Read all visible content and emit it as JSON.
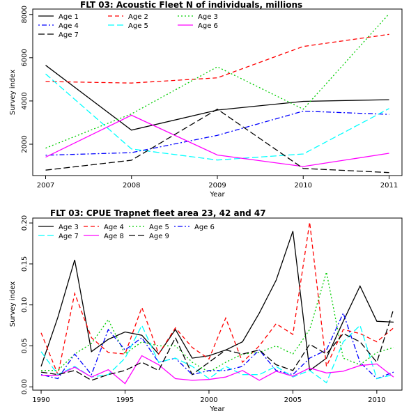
{
  "chart_data": [
    {
      "type": "line",
      "title": "FLT 03: Acoustic Fleet  N of individuals, millions",
      "xlabel": "Year",
      "ylabel": "Survey index",
      "xlim": [
        2006.85,
        2011.15
      ],
      "ylim": [
        550,
        8250
      ],
      "xticks": [
        2007,
        2008,
        2009,
        2010,
        2011
      ],
      "yticks": [
        2000,
        4000,
        6000,
        8000
      ],
      "legend_placement": "top-left",
      "legend_columns": 3,
      "x": [
        2007,
        2008,
        2009,
        2010,
        2011
      ],
      "series": [
        {
          "name": "Age 1",
          "color": "#000000",
          "dash": "solid",
          "values": [
            5650,
            2650,
            3580,
            3980,
            4060
          ]
        },
        {
          "name": "Age 2",
          "color": "#ff0000",
          "dash": "dashed",
          "values": [
            4900,
            4830,
            5070,
            6520,
            7080
          ]
        },
        {
          "name": "Age 3",
          "color": "#00cd00",
          "dash": "dotted",
          "values": [
            1820,
            3400,
            5580,
            3620,
            8030
          ]
        },
        {
          "name": "Age 4",
          "color": "#0000ff",
          "dash": "dotdash",
          "values": [
            1490,
            1610,
            2410,
            3530,
            3380
          ]
        },
        {
          "name": "Age 5",
          "color": "#00ffff",
          "dash": "longdash",
          "values": [
            5250,
            1780,
            1270,
            1550,
            3650
          ]
        },
        {
          "name": "Age 6",
          "color": "#ff00ff",
          "dash": "solid",
          "values": [
            1400,
            3340,
            1500,
            970,
            1580
          ]
        },
        {
          "name": "Age 7",
          "color": "#000000",
          "dash": "longdash",
          "values": [
            800,
            1260,
            3620,
            880,
            690
          ]
        }
      ]
    },
    {
      "type": "line",
      "title": "FLT 03: CPUE Trapnet fleet area 23, 42 and 47",
      "xlabel": "Year",
      "ylabel": "Survey index",
      "xlim": [
        1989.5,
        2011.5
      ],
      "ylim": [
        -0.004,
        0.206
      ],
      "xticks": [
        1990,
        1995,
        2000,
        2005,
        2010
      ],
      "yticks": [
        0.0,
        0.05,
        0.1,
        0.15,
        0.2
      ],
      "ytick_labels": [
        "0.00",
        "0.05",
        "0.10",
        "0.15",
        "0.20"
      ],
      "legend_placement": "top-left",
      "legend_columns": 4,
      "x": [
        1990,
        1991,
        1992,
        1993,
        1994,
        1995,
        1996,
        1997,
        1998,
        1999,
        2000,
        2001,
        2002,
        2003,
        2004,
        2005,
        2006,
        2007,
        2008,
        2009,
        2010,
        2011
      ],
      "series": [
        {
          "name": "Age 3",
          "color": "#000000",
          "dash": "solid",
          "values": [
            0.025,
            0.085,
            0.155,
            0.043,
            0.058,
            0.067,
            0.063,
            0.04,
            0.07,
            0.035,
            0.038,
            0.045,
            0.055,
            0.09,
            0.13,
            0.19,
            0.02,
            0.035,
            0.08,
            0.123,
            0.08,
            0.079
          ]
        },
        {
          "name": "Age 4",
          "color": "#ff0000",
          "dash": "dashed",
          "values": [
            0.066,
            0.015,
            0.114,
            0.06,
            0.042,
            0.04,
            0.097,
            0.04,
            0.072,
            0.048,
            0.034,
            0.084,
            0.03,
            0.05,
            0.077,
            0.064,
            0.201,
            0.025,
            0.07,
            0.065,
            0.055,
            0.072
          ]
        },
        {
          "name": "Age 5",
          "color": "#00cd00",
          "dash": "dotted",
          "values": [
            0.02,
            0.02,
            0.04,
            0.053,
            0.082,
            0.04,
            0.055,
            0.05,
            0.05,
            0.03,
            0.018,
            0.03,
            0.04,
            0.042,
            0.05,
            0.04,
            0.07,
            0.14,
            0.035,
            0.027,
            0.042,
            0.048
          ]
        },
        {
          "name": "Age 6",
          "color": "#0000ff",
          "dash": "dotdash",
          "values": [
            0.015,
            0.01,
            0.04,
            0.015,
            0.07,
            0.045,
            0.06,
            0.03,
            0.035,
            0.015,
            0.02,
            0.02,
            0.025,
            0.045,
            0.02,
            0.015,
            0.035,
            0.045,
            0.09,
            0.03,
            0.01,
            0.018
          ]
        },
        {
          "name": "Age 7",
          "color": "#00ffff",
          "dash": "longdash",
          "values": [
            0.043,
            0.015,
            0.025,
            0.012,
            0.015,
            0.035,
            0.075,
            0.03,
            0.035,
            0.025,
            0.01,
            0.025,
            0.015,
            0.015,
            0.025,
            0.012,
            0.02,
            0.005,
            0.055,
            0.075,
            0.01,
            0.015
          ]
        },
        {
          "name": "Age 8",
          "color": "#ff00ff",
          "dash": "solid",
          "values": [
            0.014,
            0.014,
            0.024,
            0.012,
            0.021,
            0.004,
            0.038,
            0.027,
            0.01,
            0.008,
            0.009,
            0.012,
            0.02,
            0.008,
            0.019,
            0.013,
            0.023,
            0.017,
            0.019,
            0.026,
            0.028,
            0.012
          ]
        },
        {
          "name": "Age 9",
          "color": "#000000",
          "dash": "longdash",
          "values": [
            0.018,
            0.015,
            0.02,
            0.008,
            0.015,
            0.02,
            0.03,
            0.02,
            0.06,
            0.015,
            0.03,
            0.045,
            0.04,
            0.045,
            0.027,
            0.02,
            0.052,
            0.04,
            0.065,
            0.055,
            0.03,
            0.095
          ]
        }
      ]
    }
  ]
}
